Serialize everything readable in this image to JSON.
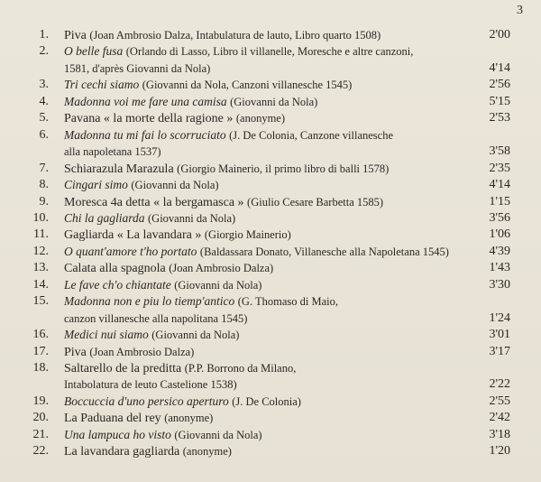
{
  "page_number": "3",
  "tracks": [
    {
      "number": "1.",
      "title": "Piva",
      "italic": false,
      "credit": "(Joan Ambrosio Dalza, Intabulatura de lauto, Libro quarto 1508)",
      "duration": "2'00"
    },
    {
      "number": "2.",
      "title": "O belle fusa",
      "italic": true,
      "credit": "(Orlando di Lasso, Libro il villanelle, Moresche e altre canzoni,",
      "credit_cont": "1581, d'après Giovanni da Nola)",
      "duration": "4'14"
    },
    {
      "number": "3.",
      "title": "Tri cechi siamo",
      "italic": true,
      "credit": "(Giovanni da Nola, Canzoni villanesche 1545)",
      "duration": "2'56"
    },
    {
      "number": "4.",
      "title": "Madonna voi me fare una camisa",
      "italic": true,
      "credit": "(Giovanni da Nola)",
      "duration": "5'15"
    },
    {
      "number": "5.",
      "title": "Pavana « la morte della ragione »",
      "italic": false,
      "credit": "(anonyme)",
      "duration": "2'53"
    },
    {
      "number": "6.",
      "title": "Madonna tu mi fai lo scorruciato",
      "italic": true,
      "credit": "(J. De Colonia, Canzone villanesche",
      "credit_cont": "alla napoletana 1537)",
      "duration": "3'58"
    },
    {
      "number": "7.",
      "title": "Schiarazula Marazula",
      "italic": false,
      "credit": "(Giorgio Mainerio, il primo libro di balli 1578)",
      "duration": "2'35"
    },
    {
      "number": "8.",
      "title": "Cingari simo",
      "italic": true,
      "credit": "(Giovanni da Nola)",
      "duration": "4'14"
    },
    {
      "number": "9.",
      "title": "Moresca 4a detta « la bergamasca »",
      "italic": false,
      "credit": "(Giulio Cesare Barbetta 1585)",
      "duration": "1'15"
    },
    {
      "number": "10.",
      "title": "Chi la gagliarda",
      "italic": true,
      "credit": "(Giovanni da Nola)",
      "duration": "3'56"
    },
    {
      "number": "11.",
      "title": "Gagliarda « La lavandara »",
      "italic": false,
      "credit": "(Giorgio Mainerio)",
      "duration": "1'06"
    },
    {
      "number": "12.",
      "title": "O quant'amore t'ho portato",
      "italic": true,
      "credit": "(Baldassara Donato, Villanesche alla Napoletana 1545)",
      "duration": "4'39"
    },
    {
      "number": "13.",
      "title": "Calata alla spagnola",
      "italic": false,
      "credit": "(Joan Ambrosio Dalza)",
      "duration": "1'43"
    },
    {
      "number": "14.",
      "title": "Le fave ch'o chiantate",
      "italic": true,
      "credit": "(Giovanni da Nola)",
      "duration": "3'30"
    },
    {
      "number": "15.",
      "title": "Madonna non e piu lo tiemp'antico",
      "italic": true,
      "credit": "(G. Thomaso di Maio,",
      "credit_cont": "canzon villanesche alla napolitana 1545)",
      "duration": "1'24"
    },
    {
      "number": "16.",
      "title": "Medici nui siamo",
      "italic": true,
      "credit": "(Giovanni da Nola)",
      "duration": "3'01"
    },
    {
      "number": "17.",
      "title": "Piva",
      "italic": false,
      "credit": "(Joan Ambrosio Dalza)",
      "duration": "3'17"
    },
    {
      "number": "18.",
      "title": "Saltarello de la preditta",
      "italic": false,
      "credit": "(P.P. Borrono da Milano,",
      "credit_cont": "Intabolatura de leuto Castelione 1538)",
      "duration": "2'22"
    },
    {
      "number": "19.",
      "title": "Boccuccia d'uno persico aperturo",
      "italic": true,
      "credit": "(J. De Colonia)",
      "duration": "2'55"
    },
    {
      "number": "20.",
      "title": "La Paduana del rey",
      "italic": false,
      "credit": "(anonyme)",
      "duration": "2'42"
    },
    {
      "number": "21.",
      "title": "Una lampuca ho visto",
      "italic": true,
      "credit": "(Giovanni da Nola)",
      "duration": "3'18"
    },
    {
      "number": "22.",
      "title": "La lavandara gagliarda",
      "italic": false,
      "credit": "(anonyme)",
      "duration": "1'20"
    }
  ]
}
